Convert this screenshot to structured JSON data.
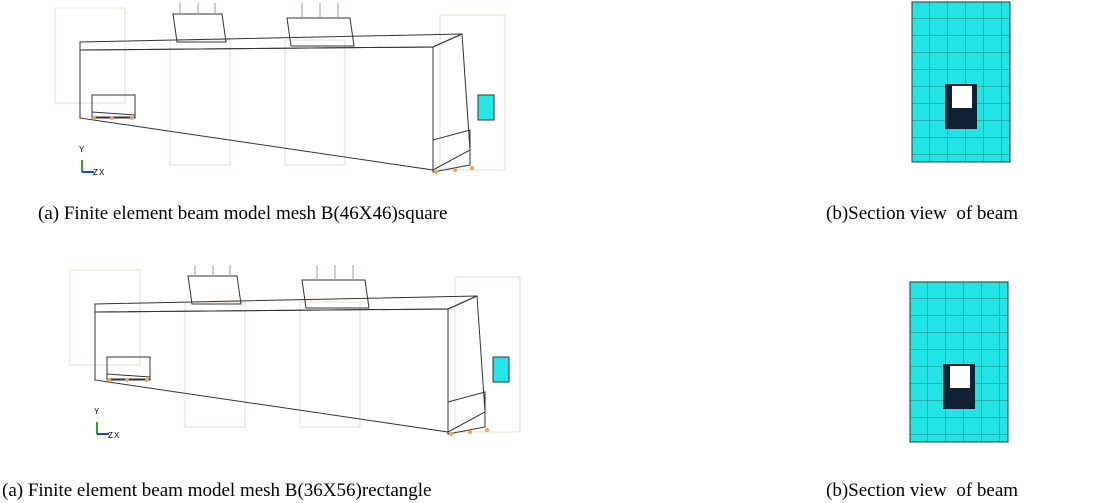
{
  "figures": [
    {
      "beam_caption": "(a) Finite element beam model mesh B(46X46)square",
      "section_caption": "(b)Section view  of beam",
      "axes": {
        "y": "Y",
        "z": "Z",
        "x": "X"
      }
    },
    {
      "beam_caption": "(a) Finite element beam model mesh B(36X56)rectangle",
      "section_caption": "(b)Section view  of beam",
      "axes": {
        "y": "Y",
        "z": "Z",
        "x": "X"
      }
    }
  ]
}
